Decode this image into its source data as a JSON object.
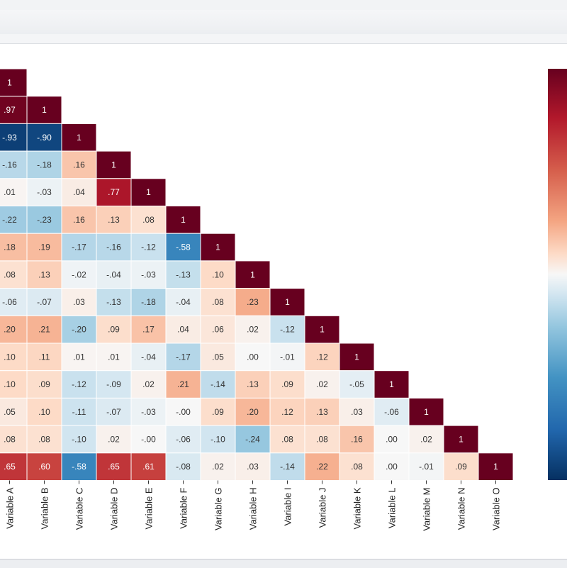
{
  "chart_data": {
    "type": "heatmap",
    "title": "",
    "xlabel": "",
    "ylabel": "",
    "x_labels": [
      "Variable A",
      "Variable B",
      "Variable C",
      "Variable D",
      "Variable E",
      "Variable F",
      "Variable G",
      "Variable H",
      "Variable I",
      "Variable J",
      "Variable K",
      "Variable L",
      "Variable M",
      "Variable N",
      "Variable O"
    ],
    "value_range": [
      -1,
      1
    ],
    "colormap": "red-white-blue (diverging)",
    "grid": false,
    "colorbar": "right",
    "lower_triangle": [
      [
        "1"
      ],
      [
        ".97",
        "1"
      ],
      [
        "-.93",
        "-.90",
        "1"
      ],
      [
        "-.16",
        "-.18",
        ".16",
        "1"
      ],
      [
        ".01",
        "-.03",
        ".04",
        ".77",
        "1"
      ],
      [
        "-.22",
        "-.23",
        ".16",
        ".13",
        ".08",
        "1"
      ],
      [
        ".18",
        ".19",
        "-.17",
        "-.16",
        "-.12",
        "-.58",
        "1"
      ],
      [
        ".08",
        ".13",
        "-.02",
        "-.04",
        "-.03",
        "-.13",
        ".10",
        "1"
      ],
      [
        "-.06",
        "-.07",
        ".03",
        "-.13",
        "-.18",
        "-.04",
        ".08",
        ".23",
        "1"
      ],
      [
        ".20",
        ".21",
        "-.20",
        ".09",
        ".17",
        ".04",
        ".06",
        ".02",
        "-.12",
        "1"
      ],
      [
        ".10",
        ".11",
        ".01",
        ".01",
        "-.04",
        "-.17",
        ".05",
        ".00",
        "-.01",
        ".12",
        "1"
      ],
      [
        ".10",
        ".09",
        "-.12",
        "-.09",
        ".02",
        ".21",
        "-.14",
        ".13",
        ".09",
        ".02",
        "-.05",
        "1"
      ],
      [
        ".05",
        ".10",
        "-.11",
        "-.07",
        "-.03",
        "-.00",
        ".09",
        ".20",
        ".12",
        ".13",
        ".03",
        "-.06",
        "1"
      ],
      [
        ".08",
        ".08",
        "-.10",
        ".02",
        "-.00",
        "-.06",
        "-.10",
        "-.24",
        ".08",
        ".08",
        ".16",
        ".00",
        ".02",
        "1"
      ],
      [
        ".65",
        ".60",
        "-.58",
        ".65",
        ".61",
        "-.08",
        ".02",
        ".03",
        "-.14",
        ".22",
        ".08",
        ".00",
        "-.01",
        ".09",
        "1"
      ]
    ]
  }
}
